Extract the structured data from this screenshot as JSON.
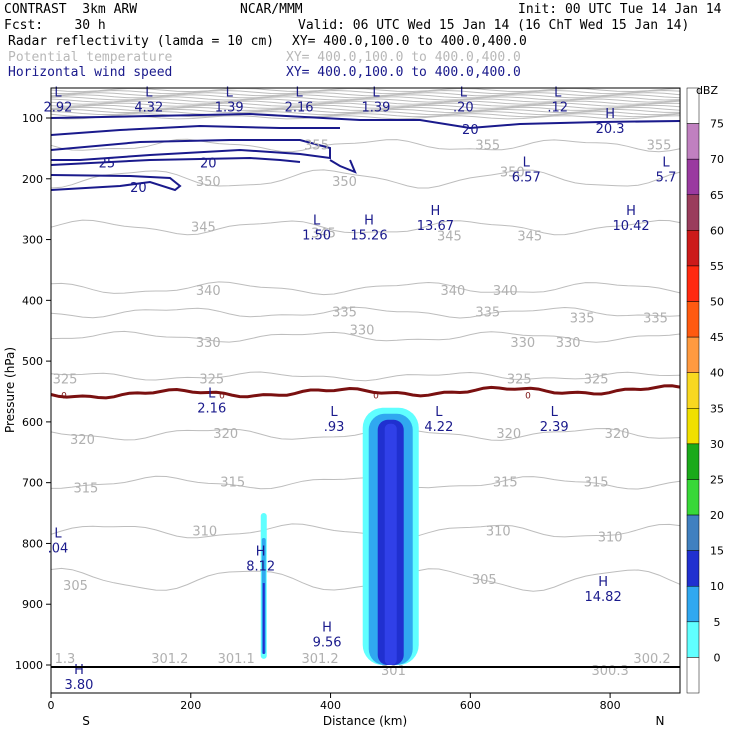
{
  "header": {
    "model": "CONTRAST  3km ARW",
    "org": "NCAR/MMM",
    "init": "Init: 00 UTC Tue 14 Jan 14",
    "fcst": "Fcst:    30 h",
    "valid": "Valid: 06 UTC Wed 15 Jan 14 (16 ChT Wed 15 Jan 14)",
    "fields": [
      {
        "label": "Radar reflectivity (lamda = 10 cm)",
        "xy": "XY= 400.0,100.0 to 400.0,400.0",
        "color": "#000000"
      },
      {
        "label": "Potential temperature",
        "xy": "XY= 400.0,100.0 to 400.0,400.0",
        "color": "#b8b8b8"
      },
      {
        "label": "Horizontal wind speed",
        "xy": "XY= 400.0,100.0 to 400.0,400.0",
        "color": "#1a1a8c"
      }
    ]
  },
  "chart_data": {
    "type": "contour",
    "xlabel": "Distance (km)",
    "ylabel": "Pressure (hPa)",
    "x_ticks": [
      0,
      200,
      400,
      600,
      800
    ],
    "y_ticks": [
      100,
      200,
      300,
      400,
      500,
      600,
      700,
      800,
      900,
      1000
    ],
    "xlim": [
      0,
      900
    ],
    "ylim_pressure": [
      1000,
      50
    ],
    "direction_labels": {
      "left": "S",
      "right": "N"
    },
    "colorbar": {
      "unit": "dBZ",
      "levels": [
        75,
        70,
        65,
        60,
        55,
        50,
        45,
        40,
        35,
        30,
        25,
        20,
        15,
        10,
        5,
        0
      ],
      "colors": [
        "#ffffff",
        "#c080c0",
        "#9a3aa0",
        "#9a3c5c",
        "#cc1a1a",
        "#ff2a10",
        "#ff5a10",
        "#ff9a40",
        "#f8d820",
        "#f0e000",
        "#1aaa1a",
        "#38d838",
        "#4080c0",
        "#2030d0",
        "#30a8f0",
        "#60ffff",
        "#ffffff"
      ]
    },
    "theta_labels": [
      {
        "x": 380,
        "p": 145,
        "text": "355"
      },
      {
        "x": 625,
        "p": 145,
        "text": "355"
      },
      {
        "x": 870,
        "p": 145,
        "text": "355"
      },
      {
        "x": 225,
        "p": 205,
        "text": "350"
      },
      {
        "x": 420,
        "p": 205,
        "text": "350"
      },
      {
        "x": 660,
        "p": 190,
        "text": "350"
      },
      {
        "x": 218,
        "p": 280,
        "text": "345"
      },
      {
        "x": 390,
        "p": 290,
        "text": "345"
      },
      {
        "x": 570,
        "p": 295,
        "text": "345"
      },
      {
        "x": 685,
        "p": 295,
        "text": "345"
      },
      {
        "x": 225,
        "p": 385,
        "text": "340"
      },
      {
        "x": 575,
        "p": 385,
        "text": "340"
      },
      {
        "x": 650,
        "p": 385,
        "text": "340"
      },
      {
        "x": 420,
        "p": 420,
        "text": "335"
      },
      {
        "x": 625,
        "p": 420,
        "text": "335"
      },
      {
        "x": 760,
        "p": 430,
        "text": "335"
      },
      {
        "x": 865,
        "p": 430,
        "text": "335"
      },
      {
        "x": 225,
        "p": 470,
        "text": "330"
      },
      {
        "x": 445,
        "p": 450,
        "text": "330"
      },
      {
        "x": 675,
        "p": 470,
        "text": "330"
      },
      {
        "x": 740,
        "p": 470,
        "text": "330"
      },
      {
        "x": 20,
        "p": 530,
        "text": "325"
      },
      {
        "x": 230,
        "p": 530,
        "text": "325"
      },
      {
        "x": 670,
        "p": 530,
        "text": "325"
      },
      {
        "x": 780,
        "p": 530,
        "text": "325"
      },
      {
        "x": 45,
        "p": 630,
        "text": "320"
      },
      {
        "x": 250,
        "p": 620,
        "text": "320"
      },
      {
        "x": 655,
        "p": 620,
        "text": "320"
      },
      {
        "x": 810,
        "p": 620,
        "text": "320"
      },
      {
        "x": 50,
        "p": 710,
        "text": "315"
      },
      {
        "x": 260,
        "p": 700,
        "text": "315"
      },
      {
        "x": 650,
        "p": 700,
        "text": "315"
      },
      {
        "x": 780,
        "p": 700,
        "text": "315"
      },
      {
        "x": 220,
        "p": 780,
        "text": "310"
      },
      {
        "x": 640,
        "p": 780,
        "text": "310"
      },
      {
        "x": 800,
        "p": 790,
        "text": "310"
      },
      {
        "x": 35,
        "p": 870,
        "text": "305"
      },
      {
        "x": 620,
        "p": 860,
        "text": "305"
      },
      {
        "x": 20,
        "p": 990,
        "text": "1.3"
      },
      {
        "x": 170,
        "p": 990,
        "text": "301.2"
      },
      {
        "x": 265,
        "p": 990,
        "text": "301.1"
      },
      {
        "x": 385,
        "p": 990,
        "text": "301.2"
      },
      {
        "x": 490,
        "p": 1010,
        "text": "301"
      },
      {
        "x": 800,
        "p": 1010,
        "text": "300.3"
      },
      {
        "x": 860,
        "p": 990,
        "text": "300.2"
      }
    ],
    "theta_LH": [
      {
        "x": 140,
        "p": 65,
        "kind": "L",
        "value": "4.32"
      },
      {
        "x": 255,
        "p": 65,
        "kind": "L",
        "value": "1.39"
      },
      {
        "x": 355,
        "p": 65,
        "kind": "L",
        "value": "2.16"
      },
      {
        "x": 465,
        "p": 65,
        "kind": "L",
        "value": "1.39"
      },
      {
        "x": 590,
        "p": 65,
        "kind": "L",
        "value": ".20"
      },
      {
        "x": 725,
        "p": 65,
        "kind": "L",
        "value": ".12"
      },
      {
        "x": 10,
        "p": 65,
        "kind": "L",
        "value": "2.92"
      },
      {
        "x": 680,
        "p": 180,
        "kind": "L",
        "value": "6.57"
      },
      {
        "x": 880,
        "p": 180,
        "kind": "L",
        "value": "5.7"
      },
      {
        "x": 380,
        "p": 275,
        "kind": "L",
        "value": "1.50"
      },
      {
        "x": 455,
        "p": 275,
        "kind": "H",
        "value": "15.26"
      },
      {
        "x": 550,
        "p": 260,
        "kind": "H",
        "value": "13.67"
      },
      {
        "x": 830,
        "p": 260,
        "kind": "H",
        "value": "10.42"
      },
      {
        "x": 800,
        "p": 100,
        "kind": "H",
        "value": "20.3"
      },
      {
        "x": 230,
        "p": 560,
        "kind": "L",
        "value": "2.16"
      },
      {
        "x": 405,
        "p": 590,
        "kind": "L",
        "value": ".93"
      },
      {
        "x": 555,
        "p": 590,
        "kind": "L",
        "value": "4.22"
      },
      {
        "x": 720,
        "p": 590,
        "kind": "L",
        "value": "2.39"
      },
      {
        "x": 10,
        "p": 790,
        "kind": "L",
        "value": ".04"
      },
      {
        "x": 300,
        "p": 820,
        "kind": "H",
        "value": "8.12"
      },
      {
        "x": 395,
        "p": 945,
        "kind": "H",
        "value": "9.56"
      },
      {
        "x": 790,
        "p": 870,
        "kind": "H",
        "value": "14.82"
      },
      {
        "x": 40,
        "p": 1015,
        "kind": "H",
        "value": "3.80"
      }
    ],
    "wind_labels": [
      {
        "x": 80,
        "p": 175,
        "text": "25"
      },
      {
        "x": 225,
        "p": 175,
        "text": "20"
      },
      {
        "x": 125,
        "p": 215,
        "text": "20"
      },
      {
        "x": 600,
        "p": 120,
        "text": "20"
      }
    ],
    "wind_contour_values": [
      20,
      25
    ],
    "freezing_level": {
      "value": "0",
      "p_approx": 555
    },
    "reflectivity_cells": [
      {
        "x_center": 495,
        "p_top": 590,
        "p_bottom": 1000,
        "max_dbz": 20
      },
      {
        "x_center": 310,
        "p_top": 750,
        "p_bottom": 990,
        "max_dbz": 15
      }
    ]
  }
}
